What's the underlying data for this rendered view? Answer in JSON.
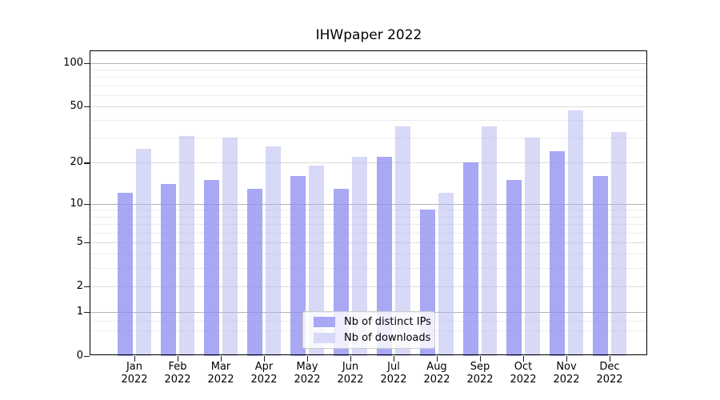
{
  "title": "IHWpaper 2022",
  "chart_data": {
    "type": "bar",
    "title": "IHWpaper 2022",
    "categories": [
      "Jan",
      "Feb",
      "Mar",
      "Apr",
      "May",
      "Jun",
      "Jul",
      "Aug",
      "Sep",
      "Oct",
      "Nov",
      "Dec"
    ],
    "category_year": "2022",
    "series": [
      {
        "name": "Nb of distinct IPs",
        "color": "#a8a8f5",
        "color_rgba": "rgba(139,139,242,0.75)",
        "values": [
          12,
          14,
          15,
          13,
          16,
          13,
          22,
          9,
          20,
          15,
          24,
          16
        ]
      },
      {
        "name": "Nb of downloads",
        "color": "#d8d8f7",
        "color_rgba": "rgba(177,177,239,0.5)",
        "values": [
          25,
          31,
          30,
          26,
          19,
          22,
          36,
          12,
          36,
          30,
          47,
          33
        ]
      }
    ],
    "yscale": "log1p",
    "ylim": [
      0,
      122
    ],
    "yticks": [
      0,
      1,
      2,
      5,
      10,
      20,
      50,
      100
    ],
    "grid": {
      "major_values": [
        1,
        10,
        100
      ],
      "mid_values": [
        2,
        5,
        20,
        50
      ],
      "minor_values": [
        0.5,
        0.75,
        3,
        4,
        6,
        7,
        8,
        9,
        30,
        40,
        60,
        70,
        80,
        90
      ],
      "major_color": "#b3b3b3",
      "mid_color": "#dcdcdc",
      "minor_color": "#ececec"
    },
    "legend_position": "lower center"
  }
}
